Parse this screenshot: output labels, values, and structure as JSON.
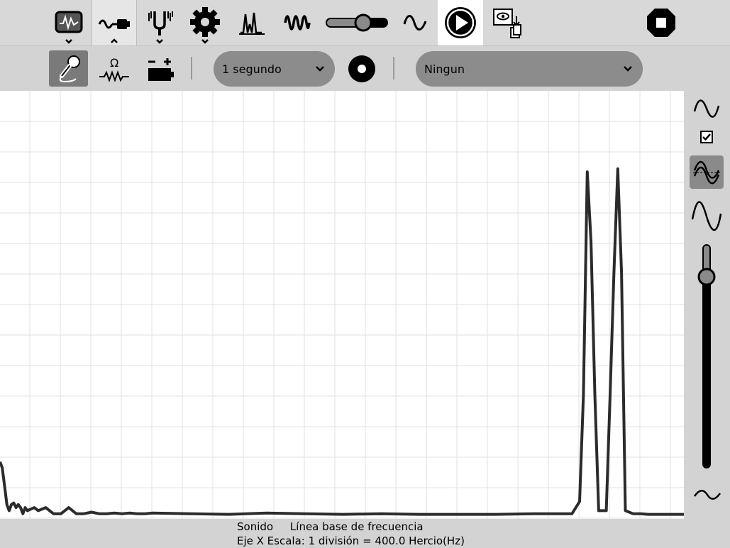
{
  "toolbar": {
    "items": [
      {
        "name": "oscilloscope-activity-icon"
      },
      {
        "name": "sensor-tab-icon",
        "active": true
      },
      {
        "name": "tuning-fork-icon"
      },
      {
        "name": "settings-gear-icon"
      },
      {
        "name": "frequency-spectrum-icon"
      },
      {
        "name": "waveform-icon"
      },
      {
        "name": "gain-slider",
        "level": 0.7
      },
      {
        "name": "sine-wave-icon"
      },
      {
        "name": "play-button"
      },
      {
        "name": "view-log-icon"
      },
      {
        "name": "stop-button"
      }
    ]
  },
  "subbar": {
    "duration_value": "1 segundo",
    "trigger_value": "Ningun"
  },
  "status": {
    "mode": "Sonido",
    "baseline": "Línea base de frecuencia",
    "scale": "Eje X Escala: 1 división = 400.0 Hercio(Hz)"
  },
  "right_panel": {
    "checkbox_checked": true,
    "vertical_slider_level": 0.86
  },
  "colors": {
    "trace": "#2b2b2b",
    "grid": "#e2e2e2",
    "plot_bg": "#ffffff",
    "panel_bg": "#d3d3d3",
    "combo_bg": "#8c8c8c"
  },
  "chart_data": {
    "type": "line",
    "x_division_hz": 400,
    "x_divisions": 22.5,
    "y_divisions": 14,
    "x_hz": [
      0,
      30,
      60,
      90,
      120,
      150,
      180,
      210,
      240,
      270,
      300,
      330,
      360,
      400,
      450,
      500,
      600,
      700,
      800,
      900,
      1000,
      1100,
      1200,
      1300,
      1400,
      1500,
      1600,
      1700,
      1800,
      1900,
      2000,
      2500,
      3000,
      3500,
      4000,
      4500,
      5000,
      5500,
      6000,
      6500,
      7000,
      7500,
      7600,
      7650,
      7700,
      7750,
      7800,
      7850,
      7900,
      7950,
      8000,
      8050,
      8100,
      8150,
      8200,
      8250,
      8300,
      8350,
      8400,
      8500,
      9000
    ],
    "y_div": [
      1.8,
      1.6,
      1.0,
      0.4,
      0.2,
      0.4,
      0.45,
      0.3,
      0.4,
      0.3,
      0.1,
      0.3,
      0.2,
      0.25,
      0.3,
      0.2,
      0.3,
      0.1,
      0.1,
      0.3,
      0.1,
      0.1,
      0.15,
      0.1,
      0.1,
      0.12,
      0.1,
      0.12,
      0.1,
      0.1,
      0.12,
      0.1,
      0.08,
      0.12,
      0.1,
      0.08,
      0.1,
      0.08,
      0.08,
      0.08,
      0.1,
      0.1,
      0.5,
      4.0,
      11.3,
      9.0,
      4.0,
      0.2,
      0.2,
      0.2,
      4.0,
      8.0,
      11.4,
      8.0,
      0.2,
      0.15,
      0.1,
      0.1,
      0.1,
      0.08,
      0.08
    ]
  }
}
